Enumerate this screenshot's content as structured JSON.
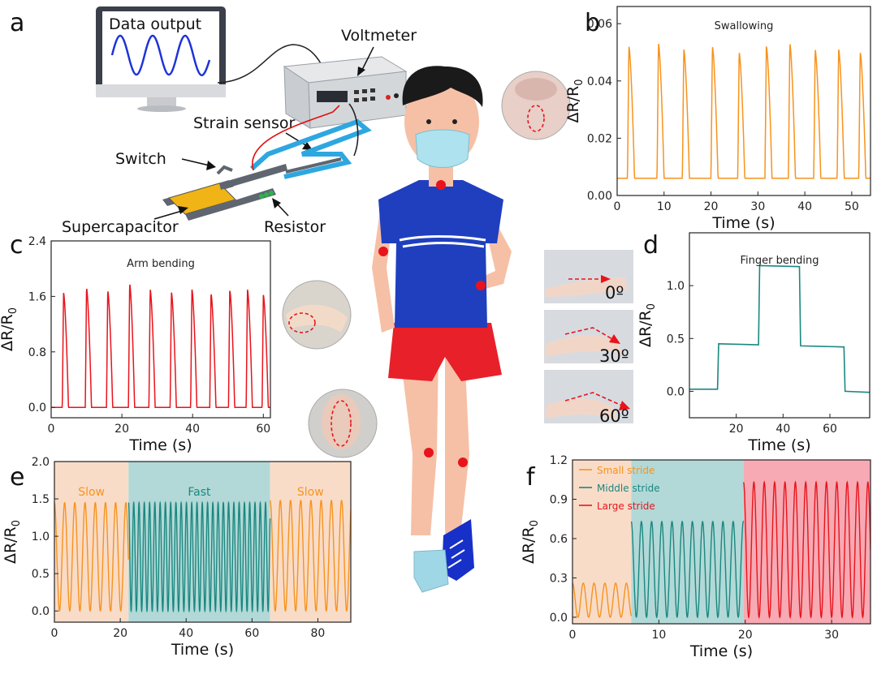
{
  "panel_letters": {
    "a": "a",
    "b": "b",
    "c": "c",
    "d": "d",
    "e": "e",
    "f": "f"
  },
  "schematic": {
    "data_output": "Data output",
    "voltmeter": "Voltmeter",
    "strain_sensor": "Strain sensor",
    "switch": "Switch",
    "supercapacitor": "Supercapacitor",
    "resistor": "Resistor"
  },
  "finger_angles": [
    "0º",
    "30º",
    "60º"
  ],
  "colors": {
    "orange": "#f7931e",
    "teal": "#1b8780",
    "red": "#e8141b",
    "shade_orange": "#f9dcc8",
    "shade_teal": "#b2d9d7",
    "shade_red": "#f7aab4",
    "shirt": "#1f3fbf",
    "shorts": "#e8202a",
    "skin": "#f6c0a6"
  },
  "chart_data": [
    {
      "id": "b",
      "type": "line",
      "title": "Swallowing",
      "xlabel": "Time (s)",
      "ylabel": "ΔR/R0",
      "xlim": [
        0,
        54
      ],
      "ylim": [
        0,
        0.066
      ],
      "xticks": [
        0,
        10,
        20,
        30,
        40,
        50
      ],
      "yticks": [
        0.0,
        0.02,
        0.04,
        0.06
      ],
      "ytick_labels": [
        "0.00",
        "0.02",
        "0.04",
        "0.06"
      ],
      "color": "#f7931e",
      "series": [
        {
          "baseline": 0.006,
          "peak_times": [
            2.5,
            8.8,
            14.2,
            20.3,
            26,
            31.8,
            36.8,
            42.2,
            47.2,
            51.8
          ],
          "peak_values": [
            0.052,
            0.053,
            0.051,
            0.052,
            0.05,
            0.052,
            0.053,
            0.051,
            0.051,
            0.05
          ],
          "width": 1.2
        }
      ]
    },
    {
      "id": "c",
      "type": "line",
      "title": "Arm bending",
      "xlabel": "Time (s)",
      "ylabel": "ΔR/R0",
      "xlim": [
        0,
        62
      ],
      "ylim": [
        -0.15,
        2.4
      ],
      "xticks": [
        0,
        20,
        40,
        60
      ],
      "yticks": [
        0.0,
        0.8,
        1.6,
        2.4
      ],
      "ytick_labels": [
        "0.0",
        "0.8",
        "1.6",
        "2.4"
      ],
      "color": "#e8141b",
      "series": [
        {
          "baseline": 0.0,
          "peak_times": [
            3.5,
            10,
            16,
            22.2,
            28,
            34,
            39.8,
            45.2,
            50.5,
            55.5,
            60
          ],
          "peak_values": [
            1.65,
            1.72,
            1.68,
            1.78,
            1.7,
            1.66,
            1.7,
            1.64,
            1.69,
            1.7,
            1.62
          ],
          "width": 1.4
        }
      ]
    },
    {
      "id": "d",
      "type": "line",
      "title": "Finger bending",
      "xlabel": "Time (s)",
      "ylabel": "ΔR/R0",
      "xlim": [
        0,
        77
      ],
      "ylim": [
        -0.25,
        1.5
      ],
      "xticks": [
        20,
        40,
        60
      ],
      "yticks": [
        0.0,
        0.5,
        1.0
      ],
      "ytick_labels": [
        "0.0",
        "0.5",
        "1.0"
      ],
      "color": "#1b8780",
      "steps": [
        [
          0,
          0.02
        ],
        [
          12,
          0.02
        ],
        [
          12.5,
          0.45
        ],
        [
          29.5,
          0.44
        ],
        [
          30,
          1.19
        ],
        [
          47,
          1.18
        ],
        [
          47.5,
          0.43
        ],
        [
          66,
          0.42
        ],
        [
          66.5,
          0.0
        ],
        [
          77,
          -0.01
        ]
      ]
    },
    {
      "id": "e",
      "type": "line",
      "xlabel": "Time (s)",
      "ylabel": "ΔR/R0",
      "xlim": [
        0,
        90
      ],
      "ylim": [
        -0.15,
        2.0
      ],
      "xticks": [
        0,
        20,
        40,
        60,
        80
      ],
      "yticks": [
        0.0,
        0.5,
        1.0,
        1.5,
        2.0
      ],
      "ytick_labels": [
        "0.0",
        "0.5",
        "1.0",
        "1.5",
        "2.0"
      ],
      "regions": [
        {
          "label": "Slow",
          "from": 0,
          "to": 22.5,
          "shade": "#f9dcc8",
          "color": "#f7931e",
          "period": 3.1,
          "amp": 1.45
        },
        {
          "label": "Fast",
          "from": 22.5,
          "to": 65.5,
          "shade": "#b2d9d7",
          "color": "#1b8780",
          "period": 1.6,
          "amp": 1.45
        },
        {
          "label": "Slow",
          "from": 65.5,
          "to": 90,
          "shade": "#f9dcc8",
          "color": "#f7931e",
          "period": 3.1,
          "amp": 1.48
        }
      ]
    },
    {
      "id": "f",
      "type": "line",
      "xlabel": "Time (s)",
      "ylabel": "ΔR/R0",
      "xlim": [
        0,
        34.5
      ],
      "ylim": [
        -0.05,
        1.2
      ],
      "xticks": [
        0,
        10,
        20,
        30
      ],
      "yticks": [
        0.0,
        0.3,
        0.6,
        0.9,
        1.2
      ],
      "ytick_labels": [
        "0.0",
        "0.3",
        "0.6",
        "0.9",
        "1.2"
      ],
      "regions": [
        {
          "label": "Small stride",
          "from": 0,
          "to": 6.8,
          "shade": "#f9dcc8",
          "color": "#f7931e",
          "period": 1.25,
          "amp": 0.26
        },
        {
          "label": "Middle stride",
          "from": 6.8,
          "to": 19.8,
          "shade": "#b2d9d7",
          "color": "#1b8780",
          "period": 1.18,
          "amp": 0.73
        },
        {
          "label": "Large stride",
          "from": 19.8,
          "to": 34.5,
          "shade": "#f7aab4",
          "color": "#e8141b",
          "period": 1.2,
          "amp": 1.03
        }
      ]
    }
  ]
}
